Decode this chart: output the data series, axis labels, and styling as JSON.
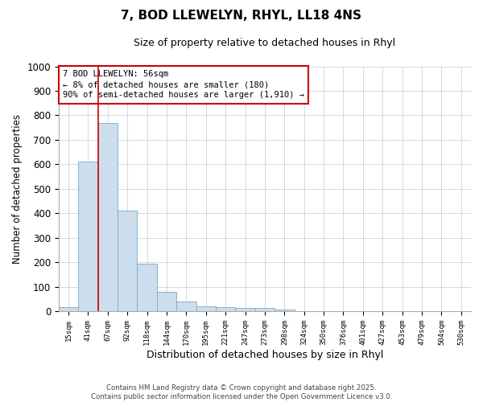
{
  "title1": "7, BOD LLEWELYN, RHYL, LL18 4NS",
  "title2": "Size of property relative to detached houses in Rhyl",
  "xlabel": "Distribution of detached houses by size in Rhyl",
  "ylabel": "Number of detached properties",
  "bar_labels": [
    "15sqm",
    "41sqm",
    "67sqm",
    "92sqm",
    "118sqm",
    "144sqm",
    "170sqm",
    "195sqm",
    "221sqm",
    "247sqm",
    "273sqm",
    "298sqm",
    "324sqm",
    "350sqm",
    "376sqm",
    "401sqm",
    "427sqm",
    "453sqm",
    "479sqm",
    "504sqm",
    "530sqm"
  ],
  "bar_values": [
    15,
    610,
    770,
    410,
    193,
    78,
    38,
    18,
    15,
    12,
    12,
    5,
    0,
    0,
    0,
    0,
    0,
    0,
    0,
    0,
    0
  ],
  "bar_color": "#ccdded",
  "bar_edge_color": "#7aaac8",
  "vline_color": "#cc0000",
  "vline_x_index": 2,
  "ylim": [
    0,
    1000
  ],
  "yticks": [
    0,
    100,
    200,
    300,
    400,
    500,
    600,
    700,
    800,
    900,
    1000
  ],
  "annotation_title": "7 BOD LLEWELYN: 56sqm",
  "annotation_line1": "← 8% of detached houses are smaller (180)",
  "annotation_line2": "90% of semi-detached houses are larger (1,910) →",
  "annotation_box_color": "#ffffff",
  "annotation_box_edge": "#cc0000",
  "footnote1": "Contains HM Land Registry data © Crown copyright and database right 2025.",
  "footnote2": "Contains public sector information licensed under the Open Government Licence v3.0.",
  "bg_color": "#ffffff",
  "plot_bg_color": "#ffffff",
  "grid_color": "#c8d4e0"
}
